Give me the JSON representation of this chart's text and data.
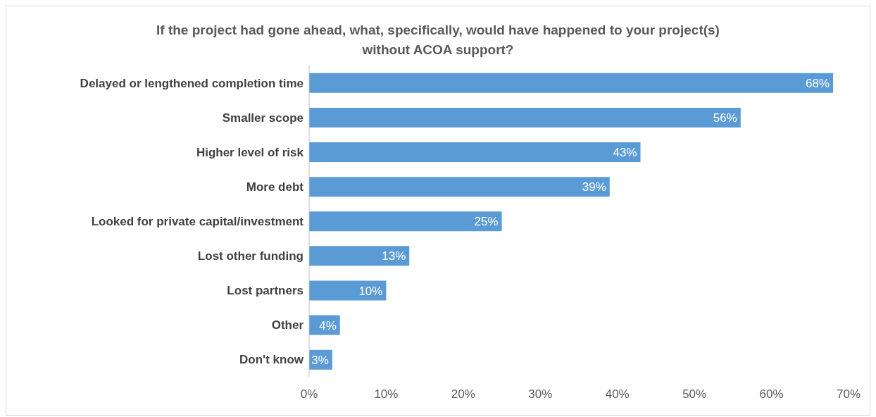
{
  "chart_data": {
    "type": "bar",
    "orientation": "horizontal",
    "title": "If the project had gone ahead, what, specifically, would have happened to your project(s) without ACOA support?",
    "categories": [
      "Delayed or lengthened completion time",
      "Smaller scope",
      "Higher level of risk",
      "More debt",
      "Looked for private capital/investment",
      "Lost other funding",
      "Lost partners",
      "Other",
      "Don't know"
    ],
    "values": [
      68,
      56,
      43,
      39,
      25,
      13,
      10,
      4,
      3
    ],
    "value_labels": [
      "68%",
      "56%",
      "43%",
      "39%",
      "25%",
      "13%",
      "10%",
      "4%",
      "3%"
    ],
    "color": "#5b9bd5",
    "xlim": [
      0,
      70
    ],
    "xticks": [
      {
        "value": 0,
        "label": "0%"
      },
      {
        "value": 10,
        "label": "10%"
      },
      {
        "value": 20,
        "label": "20%"
      },
      {
        "value": 30,
        "label": "30%"
      },
      {
        "value": 40,
        "label": "40%"
      },
      {
        "value": 50,
        "label": "50%"
      },
      {
        "value": 60,
        "label": "60%"
      },
      {
        "value": 70,
        "label": "70%"
      }
    ],
    "grid": false
  }
}
